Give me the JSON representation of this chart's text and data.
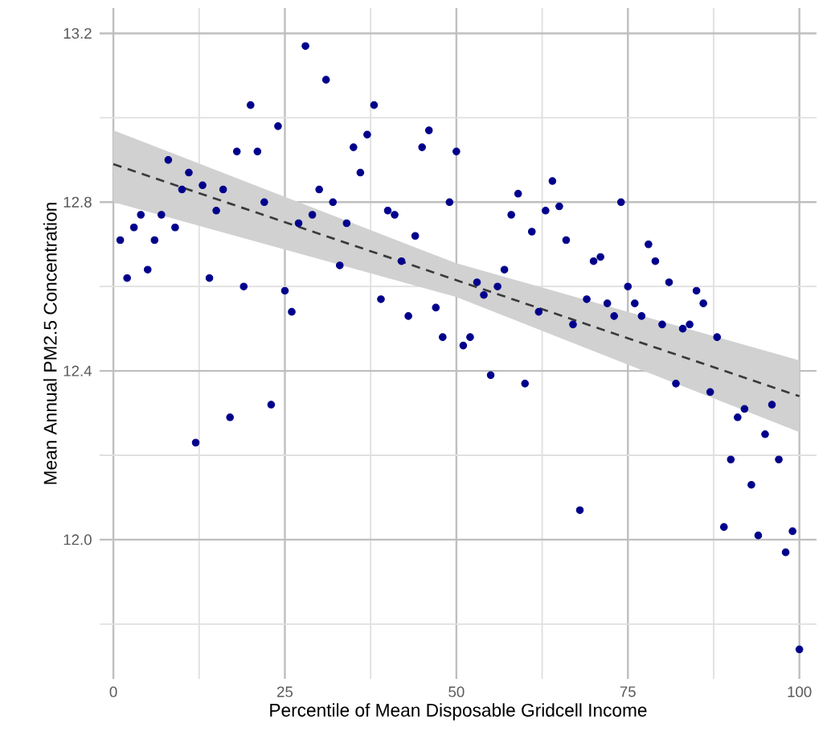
{
  "chart_data": {
    "type": "scatter",
    "xlabel": "Percentile of Mean Disposable Gridcell Income",
    "ylabel": "Mean Annual PM2.5 Concentration",
    "xlim": [
      -2,
      102.5
    ],
    "ylim": [
      11.67,
      13.26
    ],
    "xticks": [
      0,
      25,
      50,
      75,
      100
    ],
    "yticks": [
      {
        "value": 12.0,
        "label": "12.0"
      },
      12.4,
      12.8,
      13.2
    ],
    "grid": true,
    "legend": false,
    "marker": "circle",
    "series": [
      {
        "color": "#00008b",
        "x": [
          1,
          2,
          3,
          4,
          5,
          6,
          7,
          8,
          9,
          10,
          11,
          12,
          13,
          14,
          15,
          16,
          17,
          18,
          19,
          20,
          21,
          22,
          23,
          24,
          25,
          26,
          27,
          28,
          29,
          30,
          31,
          32,
          33,
          34,
          35,
          36,
          37,
          38,
          39,
          40,
          41,
          42,
          43,
          44,
          45,
          46,
          47,
          48,
          49,
          50,
          51,
          52,
          53,
          54,
          55,
          56,
          57,
          58,
          59,
          60,
          61,
          62,
          63,
          64,
          65,
          66,
          67,
          68,
          69,
          70,
          71,
          72,
          73,
          74,
          75,
          76,
          77,
          78,
          79,
          80,
          81,
          82,
          83,
          84,
          85,
          86,
          87,
          88,
          89,
          90,
          91,
          92,
          93,
          94,
          95,
          96,
          97,
          98,
          99,
          100
        ],
        "values": [
          12.71,
          12.62,
          12.74,
          12.77,
          12.64,
          12.71,
          12.77,
          12.9,
          12.74,
          12.83,
          12.87,
          12.23,
          12.84,
          12.62,
          12.78,
          12.83,
          12.29,
          12.92,
          12.6,
          13.03,
          12.92,
          12.8,
          12.32,
          12.98,
          12.59,
          12.54,
          12.75,
          13.17,
          12.77,
          12.83,
          13.09,
          12.8,
          12.65,
          12.75,
          12.93,
          12.87,
          12.96,
          13.03,
          12.57,
          12.78,
          12.77,
          12.66,
          12.53,
          12.72,
          12.93,
          12.97,
          12.55,
          12.48,
          12.8,
          12.92,
          12.46,
          12.48,
          12.61,
          12.58,
          12.39,
          12.6,
          12.64,
          12.77,
          12.82,
          12.37,
          12.73,
          12.54,
          12.78,
          12.85,
          12.79,
          12.71,
          12.51,
          12.07,
          12.57,
          12.66,
          12.67,
          12.56,
          12.53,
          12.8,
          12.6,
          12.56,
          12.53,
          12.7,
          12.66,
          12.51,
          12.61,
          12.37,
          12.5,
          12.51,
          12.59,
          12.56,
          12.35,
          12.48,
          12.03,
          12.19,
          12.29,
          12.31,
          12.13,
          12.01,
          12.25,
          12.32,
          12.19,
          11.97,
          12.02,
          11.74
        ]
      },
      {
        "type": "line",
        "color": "#3a3a3a",
        "line_style": "dashed",
        "marker": "none",
        "x": [
          0,
          50,
          100
        ],
        "values": [
          12.89,
          12.615,
          12.34
        ],
        "lower": [
          12.8,
          12.575,
          12.255
        ],
        "upper": [
          12.97,
          12.655,
          12.425
        ]
      }
    ]
  }
}
